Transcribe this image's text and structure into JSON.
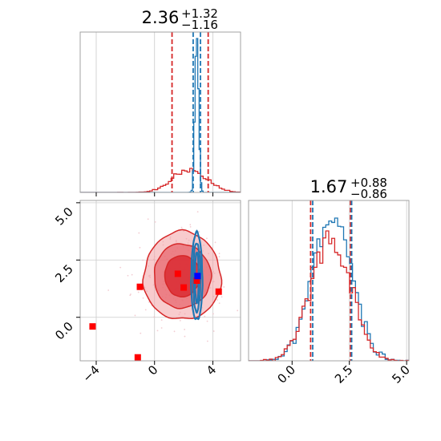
{
  "colors": {
    "blue": "#1f77b4",
    "red": "#d62728",
    "marker_red": "#ff0000",
    "marker_blue": "#0000ff",
    "grid": "#cccccc",
    "frame": "#999999"
  },
  "chart_data": [
    {
      "type": "histogram",
      "panel": "top-left",
      "parameter": "x",
      "title": {
        "main": "2.36",
        "upper": "+1.32",
        "lower": "−1.16"
      },
      "xlim": [
        -5.1,
        5.9
      ],
      "grid": true,
      "series": [
        {
          "color": "blue",
          "median": 2.9,
          "quantiles": [
            2.65,
            3.15
          ],
          "note": "narrow peak"
        },
        {
          "color": "red",
          "median": 2.36,
          "quantiles": [
            1.2,
            3.68
          ]
        }
      ]
    },
    {
      "type": "histogram",
      "panel": "bottom-right",
      "parameter": "y",
      "title": {
        "main": "1.67",
        "upper": "+0.88",
        "lower": "−0.86"
      },
      "xlim": [
        -1.9,
        5.1
      ],
      "xticks": [
        0.0,
        2.5,
        5.0
      ],
      "xtick_labels": [
        "0.0",
        "2.5",
        "5.0"
      ],
      "grid": true,
      "series": [
        {
          "color": "blue",
          "median": 1.7,
          "quantiles": [
            0.9,
            2.6
          ]
        },
        {
          "color": "red",
          "median": 1.67,
          "quantiles": [
            0.81,
            2.55
          ]
        }
      ]
    },
    {
      "type": "scatter",
      "panel": "bottom-left",
      "xlim": [
        -5.1,
        5.9
      ],
      "ylim": [
        -1.9,
        5.1
      ],
      "xticks": [
        -4,
        0,
        4
      ],
      "xtick_labels": [
        "−4",
        "0",
        "4"
      ],
      "yticks": [
        0.0,
        2.5,
        5.0
      ],
      "ytick_labels": [
        "0.0",
        "2.5",
        "5.0"
      ],
      "grid": true,
      "contours": [
        {
          "color": "red",
          "filled": true,
          "center": [
            1.9,
            1.8
          ],
          "radii": [
            [
              5.3,
              3.85
            ],
            [
              3.9,
              2.8
            ],
            [
              2.4,
              1.8
            ]
          ]
        },
        {
          "color": "blue",
          "filled": false,
          "center": [
            2.9,
            1.75
          ],
          "radii": [
            [
              0.55,
              3.8
            ],
            [
              0.35,
              3.0
            ],
            [
              0.18,
              2.2
            ]
          ]
        }
      ],
      "points": [
        {
          "x": -4.25,
          "y": -0.4,
          "color": "marker_red"
        },
        {
          "x": -1.15,
          "y": -1.75,
          "color": "marker_red"
        },
        {
          "x": -1.0,
          "y": 1.33,
          "color": "marker_red"
        },
        {
          "x": 1.6,
          "y": 1.9,
          "color": "marker_red"
        },
        {
          "x": 2.0,
          "y": 1.3,
          "color": "marker_red"
        },
        {
          "x": 2.9,
          "y": 1.6,
          "color": "marker_red"
        },
        {
          "x": 4.4,
          "y": 1.12,
          "color": "marker_red"
        },
        {
          "x": 2.95,
          "y": 1.8,
          "color": "marker_blue"
        }
      ]
    }
  ]
}
